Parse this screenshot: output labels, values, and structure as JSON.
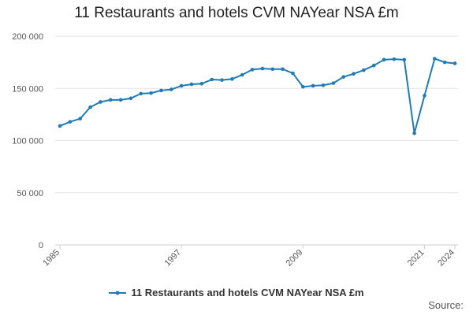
{
  "chart_data": {
    "type": "line",
    "title": "11 Restaurants and hotels CVM NAYear NSA £m",
    "xlabel": "",
    "ylabel": "",
    "x": [
      1985,
      1986,
      1987,
      1988,
      1989,
      1990,
      1991,
      1992,
      1993,
      1994,
      1995,
      1996,
      1997,
      1998,
      1999,
      2000,
      2001,
      2002,
      2003,
      2004,
      2005,
      2006,
      2007,
      2008,
      2009,
      2010,
      2011,
      2012,
      2013,
      2014,
      2015,
      2016,
      2017,
      2018,
      2019,
      2020,
      2021,
      2022,
      2023,
      2024
    ],
    "series": [
      {
        "name": "11 Restaurants and hotels CVM NAYear NSA £m",
        "color": "#1f7bb8",
        "values": [
          114000,
          118000,
          121000,
          132000,
          137000,
          139000,
          139000,
          140500,
          145000,
          145500,
          148000,
          149000,
          152500,
          154000,
          154500,
          158500,
          158000,
          159000,
          163000,
          168000,
          169000,
          168500,
          168500,
          164500,
          151500,
          152500,
          153000,
          155000,
          161000,
          164000,
          167500,
          172000,
          177500,
          178000,
          177500,
          107000,
          143000,
          178500,
          175000,
          174000
        ]
      }
    ],
    "ylim": [
      0,
      200000
    ],
    "yticks": [
      0,
      50000,
      100000,
      150000,
      200000
    ],
    "ytick_labels": [
      "0",
      "50 000",
      "100 000",
      "150 000",
      "200 000"
    ],
    "xtick_labels": [
      "1985",
      "1997",
      "2009",
      "2021",
      "2024"
    ],
    "grid": true,
    "legend": "bottom",
    "source_label": "Source:"
  }
}
